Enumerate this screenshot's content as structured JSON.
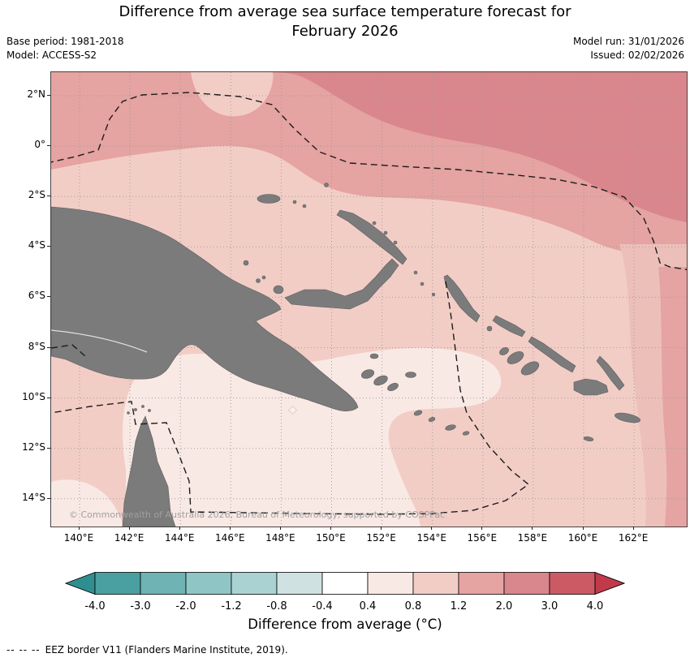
{
  "header": {
    "title_line1": "Difference from average sea surface temperature forecast for",
    "title_line2": "February 2026",
    "base_period": "Base period: 1981-2018",
    "model": "Model: ACCESS-S2",
    "model_run": "Model run: 31/01/2026",
    "issued": "Issued: 02/02/2026"
  },
  "map": {
    "lat_tick_labels": [
      "2°N",
      "0°",
      "2°S",
      "4°S",
      "6°S",
      "8°S",
      "10°S",
      "12°S",
      "14°S"
    ],
    "lon_tick_labels": [
      "140°E",
      "142°E",
      "144°E",
      "146°E",
      "148°E",
      "150°E",
      "152°E",
      "154°E",
      "156°E",
      "158°E",
      "160°E",
      "162°E"
    ],
    "copyright": "© Commonwealth of Australia 2026, Bureau of Meteorology, supported by COSPPac"
  },
  "colors": {
    "land": "#7b7b7b",
    "land_edge": "#5e5e5e",
    "grid": "#9f9f9f",
    "eez_border": "#1c1c1c",
    "river": "#e3ddd8",
    "sea_0p4_0p8": "#f9e9e5",
    "sea_0p8_1p2": "#f2cdc6",
    "sea_1p2_2p0": "#e5a3a1",
    "sea_2p0_3p0": "#d9868c",
    "sea_right_band": "#edbfb9"
  },
  "colorbar": {
    "tick_labels": [
      "-4.0",
      "-3.0",
      "-2.0",
      "-1.2",
      "-0.8",
      "-0.4",
      "0.4",
      "0.8",
      "1.2",
      "2.0",
      "3.0",
      "4.0"
    ],
    "arrow_left_color": "#2f8f90",
    "arrow_right_color": "#c13a4b",
    "segment_colors": [
      "#4a9fa0",
      "#6fb3b4",
      "#8fc5c5",
      "#aad2d2",
      "#cfe2e1",
      "#ffffff",
      "#f9e9e5",
      "#f2cdc6",
      "#e5a3a1",
      "#d9868c",
      "#cb5a64"
    ],
    "label": "Difference from average (°C)"
  },
  "footer": {
    "dash_sample": "-- -- --",
    "eez_note": "EEZ border V11 (Flanders Marine Institute, 2019)."
  },
  "chart_data": {
    "type": "heatmap",
    "title": "Difference from average sea surface temperature forecast for February 2026",
    "base_period": "1981-2018",
    "model": "ACCESS-S2",
    "model_run": "31/01/2026",
    "issued": "02/02/2026",
    "x_ticks_lon": [
      "140°E",
      "142°E",
      "144°E",
      "146°E",
      "148°E",
      "150°E",
      "152°E",
      "154°E",
      "156°E",
      "158°E",
      "160°E",
      "162°E"
    ],
    "y_ticks_lat": [
      "2°N",
      "0°",
      "2°S",
      "4°S",
      "6°S",
      "8°S",
      "10°S",
      "12°S",
      "14°S"
    ],
    "colorbar_label": "Difference from average (°C)",
    "colorbar_ticks": [
      -4.0,
      -3.0,
      -2.0,
      -1.2,
      -0.8,
      -0.4,
      0.4,
      0.8,
      1.2,
      2.0,
      3.0,
      4.0
    ],
    "regions": [
      {
        "area": "far north and north-east of map (equatorial band east of ~150°E)",
        "anomaly_degC": "+2.0 to +3.0"
      },
      {
        "area": "band across top of map north of ~2°S",
        "anomaly_degC": "+1.2 to +2.0"
      },
      {
        "area": "Bismarck Sea, Solomon Sea and waters around the Solomon Islands",
        "anomaly_degC": "+0.8 to +1.2"
      },
      {
        "area": "Gulf of Papua, Torres Strait and northern Coral Sea",
        "anomaly_degC": "+0.4 to +0.8"
      },
      {
        "area": "eastern edge of map near 162°E south of ~4°S",
        "anomaly_degC": "+0.8 to +2.0"
      }
    ]
  }
}
